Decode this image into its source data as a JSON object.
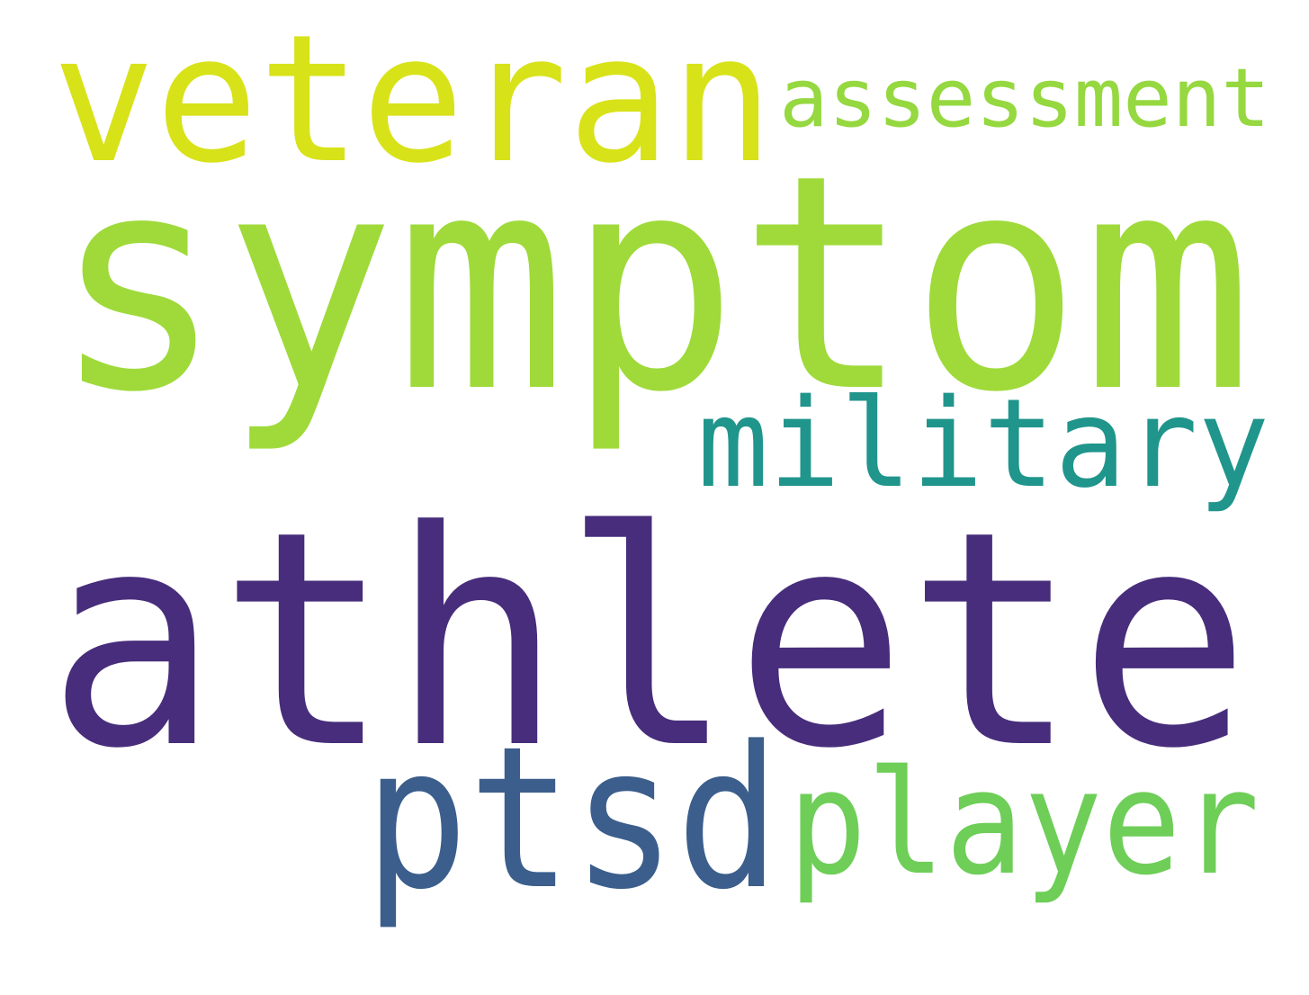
{
  "cloud": {
    "background": "#ffffff",
    "words": [
      {
        "text": "athlete",
        "color": "#472d7b"
      },
      {
        "text": "symptom",
        "color": "#9fda3a"
      },
      {
        "text": "veteran",
        "color": "#d8e219"
      },
      {
        "text": "ptsd",
        "color": "#3b5e8c"
      },
      {
        "text": "player",
        "color": "#6ece58"
      },
      {
        "text": "military",
        "color": "#20958c"
      },
      {
        "text": "assessment",
        "color": "#95d840"
      }
    ]
  }
}
